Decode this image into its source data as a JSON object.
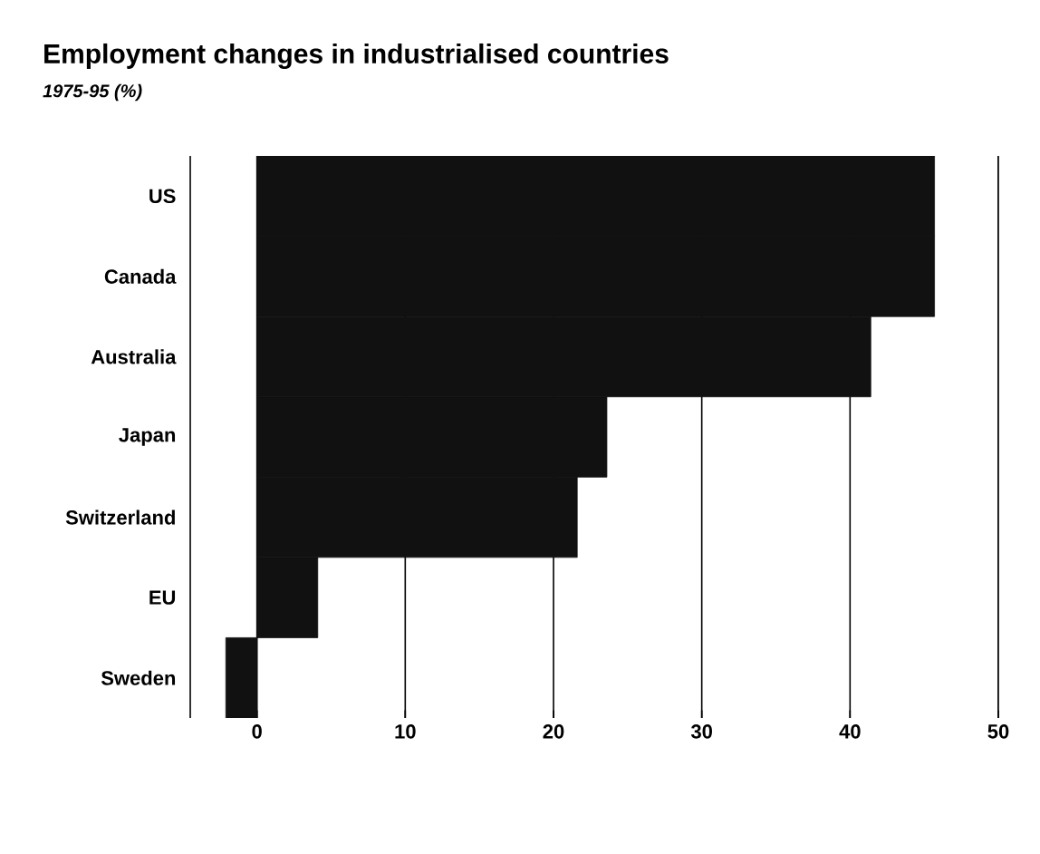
{
  "chart_data": {
    "type": "bar",
    "orientation": "horizontal",
    "title": "Employment changes in industrialised countries",
    "subtitle": "1975-95 (%)",
    "categories": [
      "US",
      "Canada",
      "Australia",
      "Japan",
      "Switzerland",
      "EU",
      "Sweden"
    ],
    "values": [
      45.7,
      45.7,
      41.4,
      23.6,
      21.6,
      4.1,
      -2.1
    ],
    "color": "#111111",
    "xlim": [
      -4.5,
      50
    ],
    "xticks": [
      0,
      10,
      20,
      30,
      40,
      50
    ],
    "grid": "x"
  }
}
